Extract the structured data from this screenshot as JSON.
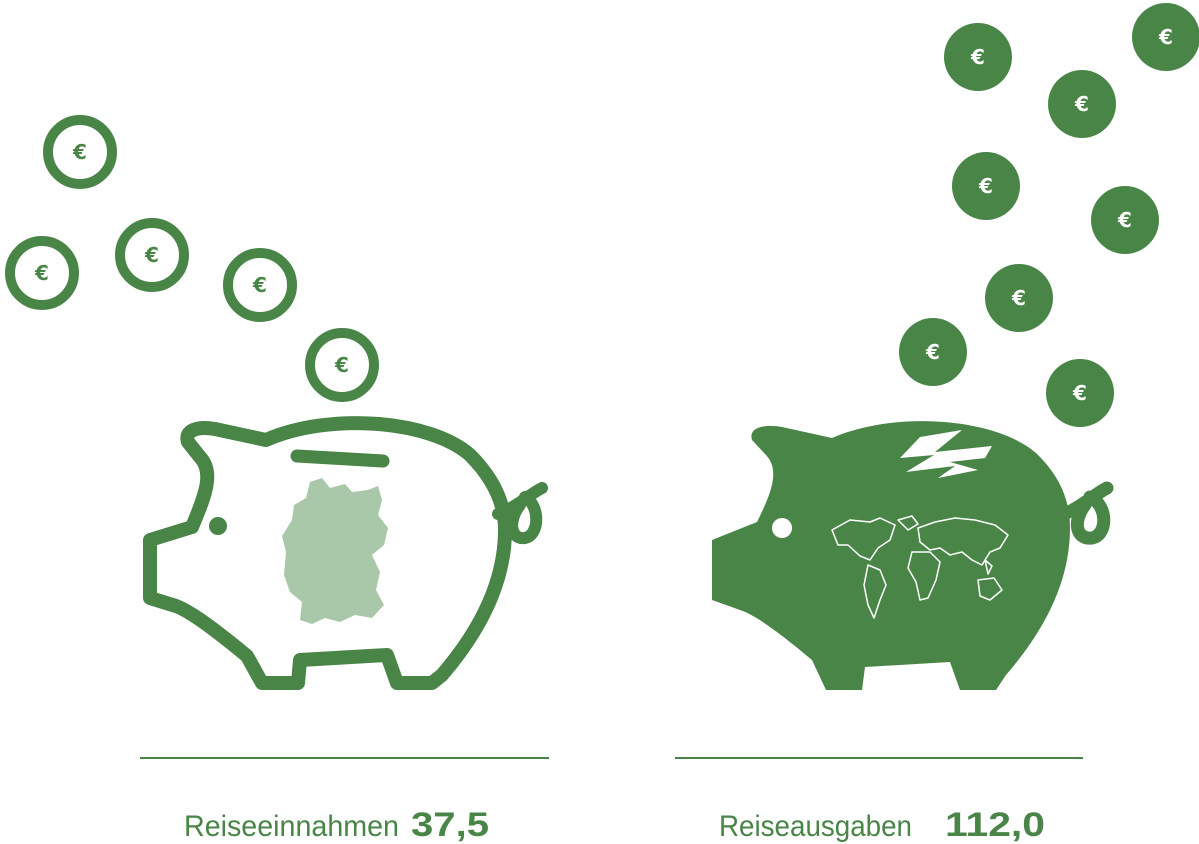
{
  "coin_symbol": "€",
  "items": [
    {
      "label": "Reiseeinnahmen",
      "value": "37,5"
    },
    {
      "label": "Reiseausgaben",
      "value": "112,0"
    }
  ]
}
